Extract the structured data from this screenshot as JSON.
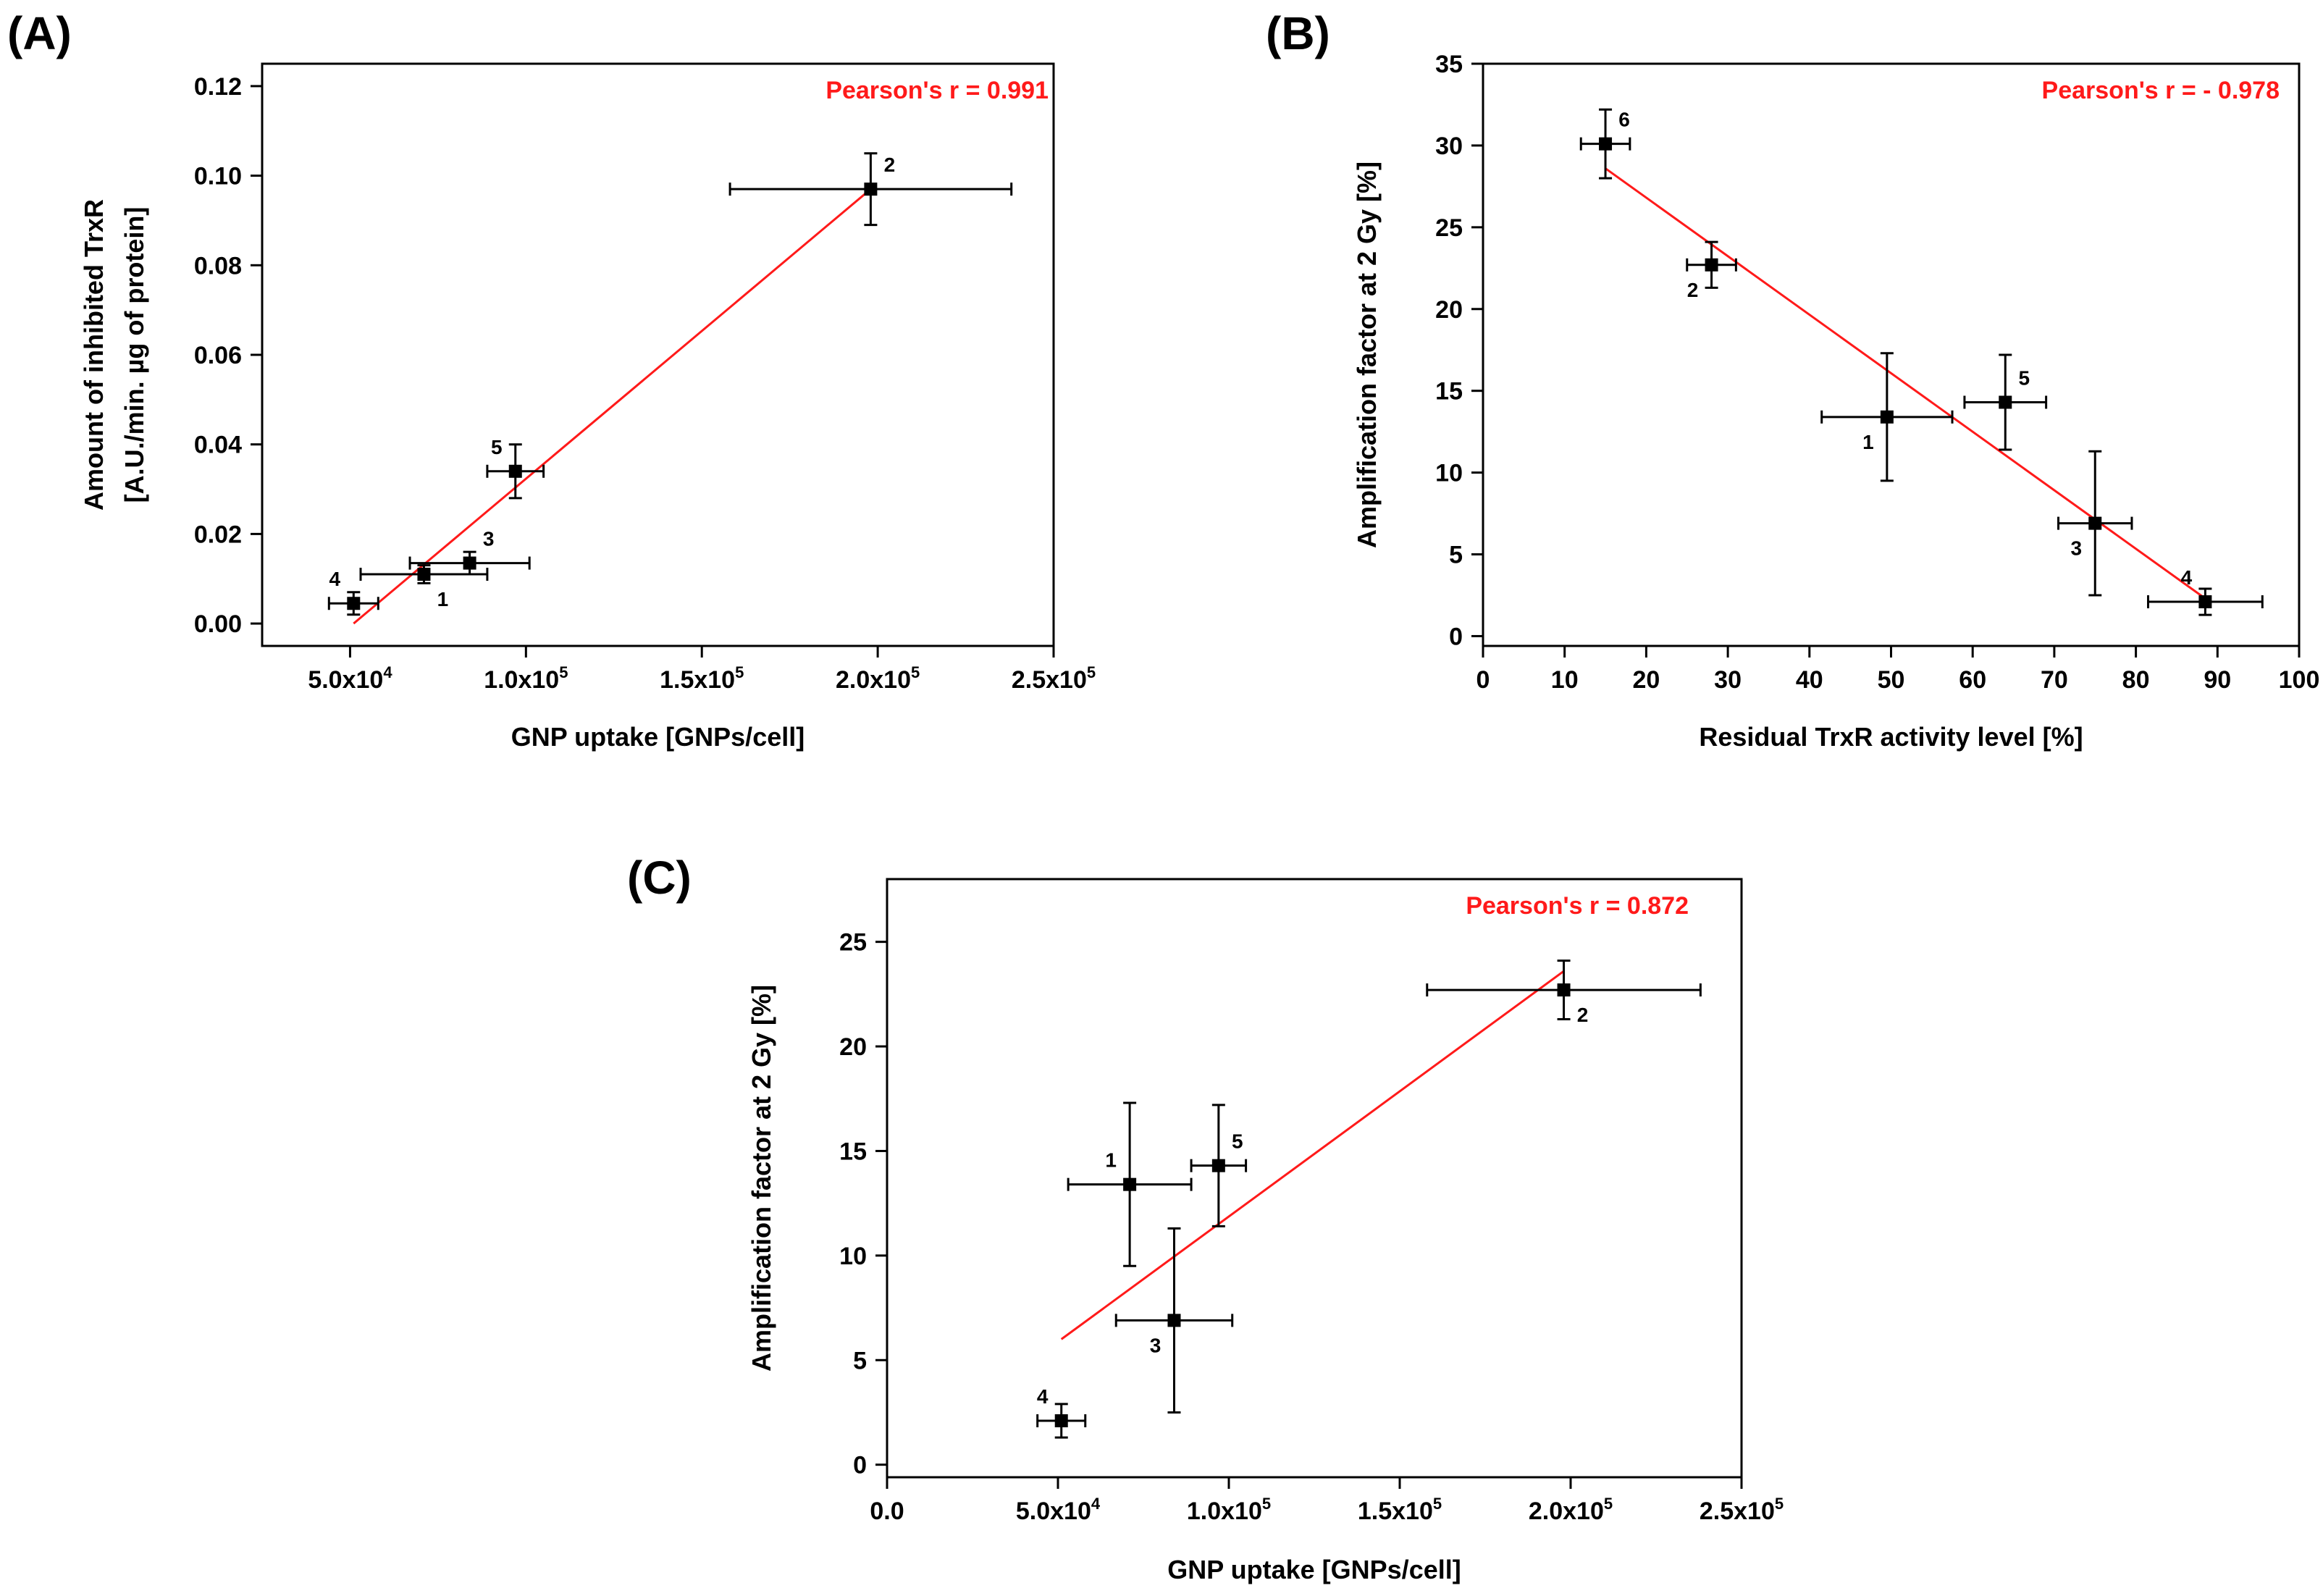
{
  "colors": {
    "fit": "#ff1a1a",
    "points": "#000000",
    "pearson": "#ff1a1a"
  },
  "chart_data": [
    {
      "type": "scatter",
      "panel": "(A)",
      "xlabel": "GNP uptake [GNPs/cell]",
      "ylabel": [
        "Amount of inhibited TrxR",
        "[A.U./min. µg of protein]"
      ],
      "annotation": "Pearson's r = 0.991",
      "xlim": [
        25000,
        250000
      ],
      "ylim": [
        -0.005,
        0.125
      ],
      "xticks": [
        {
          "v": 50000,
          "m": "5.0x10",
          "e": "4"
        },
        {
          "v": 100000,
          "m": "1.0x10",
          "e": "5"
        },
        {
          "v": 150000,
          "m": "1.5x10",
          "e": "5"
        },
        {
          "v": 200000,
          "m": "2.0x10",
          "e": "5"
        },
        {
          "v": 250000,
          "m": "2.5x10",
          "e": "5"
        }
      ],
      "yticks": [
        {
          "v": 0.0,
          "t": "0.00"
        },
        {
          "v": 0.02,
          "t": "0.02"
        },
        {
          "v": 0.04,
          "t": "0.04"
        },
        {
          "v": 0.06,
          "t": "0.06"
        },
        {
          "v": 0.08,
          "t": "0.08"
        },
        {
          "v": 0.1,
          "t": "0.10"
        },
        {
          "v": 0.12,
          "t": "0.12"
        }
      ],
      "points": [
        {
          "label": "1",
          "x": 71000,
          "y": 0.011,
          "xerr": 18000,
          "yerr": 0.002,
          "pos": "br"
        },
        {
          "label": "2",
          "x": 198000,
          "y": 0.097,
          "xerr": 40000,
          "yerr": 0.008,
          "pos": "tr"
        },
        {
          "label": "3",
          "x": 84000,
          "y": 0.0135,
          "xerr": 17000,
          "yerr": 0.0025,
          "pos": "tr"
        },
        {
          "label": "4",
          "x": 51000,
          "y": 0.0045,
          "xerr": 7000,
          "yerr": 0.0025,
          "pos": "tl"
        },
        {
          "label": "5",
          "x": 97000,
          "y": 0.034,
          "xerr": 8000,
          "yerr": 0.006,
          "pos": "tl"
        }
      ],
      "fit": [
        [
          51000,
          0.0
        ],
        [
          198000,
          0.097
        ]
      ]
    },
    {
      "type": "scatter",
      "panel": "(B)",
      "xlabel": "Residual TrxR activity level [%]",
      "ylabel": [
        "Amplification factor at 2 Gy [%]"
      ],
      "annotation": "Pearson's r = - 0.978",
      "xlim": [
        0,
        100
      ],
      "ylim": [
        -0.6,
        35
      ],
      "xticks": [
        {
          "v": 0,
          "t": "0"
        },
        {
          "v": 10,
          "t": "10"
        },
        {
          "v": 20,
          "t": "20"
        },
        {
          "v": 30,
          "t": "30"
        },
        {
          "v": 40,
          "t": "40"
        },
        {
          "v": 50,
          "t": "50"
        },
        {
          "v": 60,
          "t": "60"
        },
        {
          "v": 70,
          "t": "70"
        },
        {
          "v": 80,
          "t": "80"
        },
        {
          "v": 90,
          "t": "90"
        },
        {
          "v": 100,
          "t": "100"
        }
      ],
      "yticks": [
        {
          "v": 0,
          "t": "0"
        },
        {
          "v": 5,
          "t": "5"
        },
        {
          "v": 10,
          "t": "10"
        },
        {
          "v": 15,
          "t": "15"
        },
        {
          "v": 20,
          "t": "20"
        },
        {
          "v": 25,
          "t": "25"
        },
        {
          "v": 30,
          "t": "30"
        },
        {
          "v": 35,
          "t": "35"
        }
      ],
      "points": [
        {
          "label": "1",
          "x": 49.5,
          "y": 13.4,
          "xerr": 8,
          "yerr": 3.9,
          "pos": "bl"
        },
        {
          "label": "2",
          "x": 28,
          "y": 22.7,
          "xerr": 3,
          "yerr": 1.4,
          "pos": "bl"
        },
        {
          "label": "3",
          "x": 75,
          "y": 6.9,
          "xerr": 4.5,
          "yerr": 4.4,
          "pos": "bl"
        },
        {
          "label": "4",
          "x": 88.5,
          "y": 2.1,
          "xerr": 7,
          "yerr": 0.8,
          "pos": "tl"
        },
        {
          "label": "5",
          "x": 64,
          "y": 14.3,
          "xerr": 5,
          "yerr": 2.9,
          "pos": "tr"
        },
        {
          "label": "6",
          "x": 15,
          "y": 30.1,
          "xerr": 3,
          "yerr": 2.1,
          "pos": "tr"
        }
      ],
      "fit": [
        [
          15,
          28.6
        ],
        [
          88.5,
          2.3
        ]
      ]
    },
    {
      "type": "scatter",
      "panel": "(C)",
      "xlabel": "GNP uptake [GNPs/cell]",
      "ylabel": [
        "Amplification factor at 2 Gy [%]"
      ],
      "annotation": "Pearson's r = 0.872",
      "xlim": [
        0,
        250000
      ],
      "ylim": [
        -0.6,
        28
      ],
      "xticks": [
        {
          "v": 0,
          "m": "0.0",
          "e": ""
        },
        {
          "v": 50000,
          "m": "5.0x10",
          "e": "4"
        },
        {
          "v": 100000,
          "m": "1.0x10",
          "e": "5"
        },
        {
          "v": 150000,
          "m": "1.5x10",
          "e": "5"
        },
        {
          "v": 200000,
          "m": "2.0x10",
          "e": "5"
        },
        {
          "v": 250000,
          "m": "2.5x10",
          "e": "5"
        }
      ],
      "yticks": [
        {
          "v": 0,
          "t": "0"
        },
        {
          "v": 5,
          "t": "5"
        },
        {
          "v": 10,
          "t": "10"
        },
        {
          "v": 15,
          "t": "15"
        },
        {
          "v": 20,
          "t": "20"
        },
        {
          "v": 25,
          "t": "25"
        }
      ],
      "points": [
        {
          "label": "1",
          "x": 71000,
          "y": 13.4,
          "xerr": 18000,
          "yerr": 3.9,
          "pos": "tl"
        },
        {
          "label": "2",
          "x": 198000,
          "y": 22.7,
          "xerr": 40000,
          "yerr": 1.4,
          "pos": "br"
        },
        {
          "label": "3",
          "x": 84000,
          "y": 6.9,
          "xerr": 17000,
          "yerr": 4.4,
          "pos": "bl"
        },
        {
          "label": "4",
          "x": 51000,
          "y": 2.1,
          "xerr": 7000,
          "yerr": 0.8,
          "pos": "tl"
        },
        {
          "label": "5",
          "x": 97000,
          "y": 14.3,
          "xerr": 8000,
          "yerr": 2.9,
          "pos": "tr"
        }
      ],
      "fit": [
        [
          51000,
          6.0
        ],
        [
          198000,
          23.6
        ]
      ]
    }
  ]
}
